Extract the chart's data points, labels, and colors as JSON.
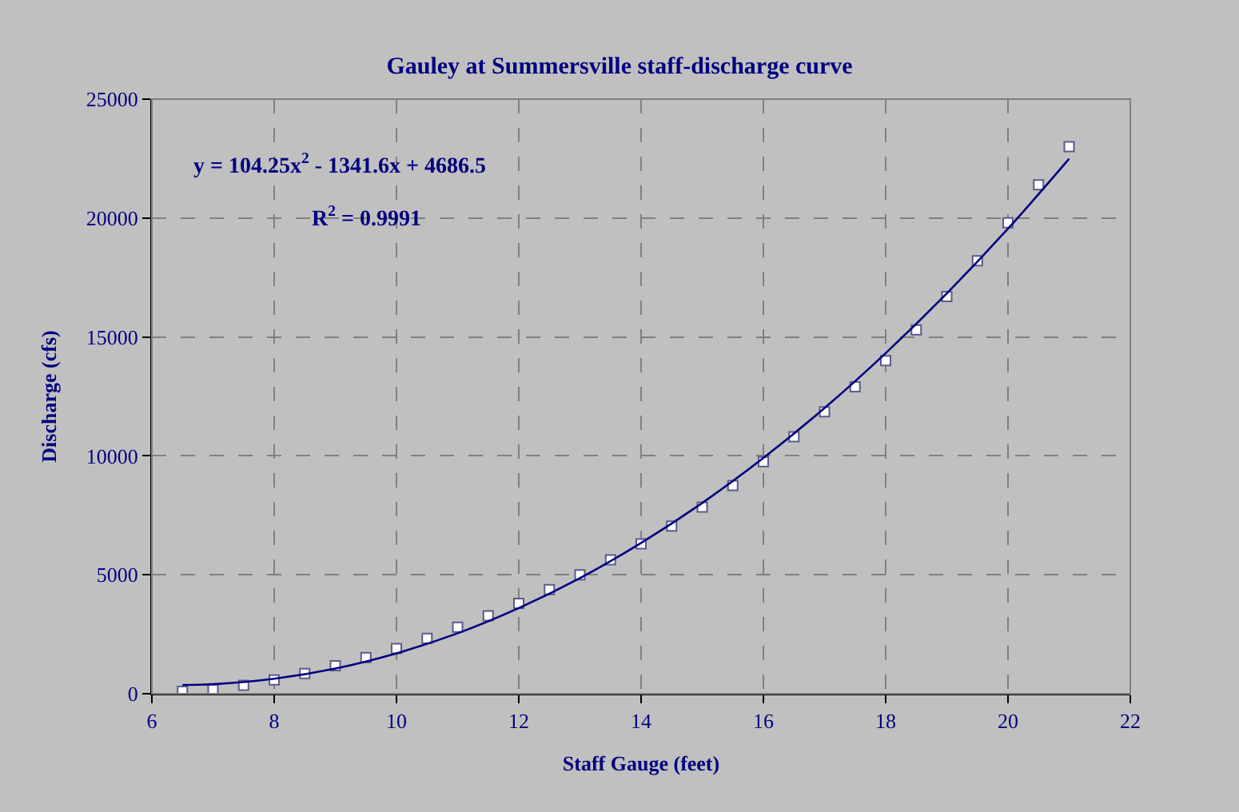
{
  "chart_data": {
    "type": "scatter",
    "title": "Gauley at Summersville staff-discharge curve",
    "xlabel": "Staff Gauge (feet)",
    "ylabel": "Discharge (cfs)",
    "xlim": [
      6,
      22
    ],
    "xticks": [
      6,
      8,
      10,
      12,
      14,
      16,
      18,
      20,
      22
    ],
    "ylim": [
      0,
      25000
    ],
    "yticks": [
      0,
      5000,
      10000,
      15000,
      20000,
      25000
    ],
    "grid": true,
    "series": [
      {
        "marker": "square",
        "color": "#ffffff",
        "x": [
          6.5,
          7,
          7.5,
          8,
          8.5,
          9,
          9.5,
          10,
          10.5,
          11,
          11.5,
          12,
          12.5,
          13,
          13.5,
          14,
          14.5,
          15,
          15.5,
          16,
          16.5,
          17,
          17.5,
          18,
          18.5,
          19,
          19.5,
          20,
          20.5,
          21
        ],
        "values": [
          100,
          180,
          350,
          580,
          850,
          1180,
          1520,
          1900,
          2330,
          2800,
          3280,
          3800,
          4380,
          5000,
          5630,
          6300,
          7050,
          7850,
          8750,
          9750,
          10800,
          11850,
          12900,
          14000,
          15300,
          16700,
          18200,
          19800,
          21400,
          23000
        ]
      },
      {
        "type": "line",
        "marker": "none",
        "line_style": "solid",
        "color": "#000080",
        "x": [
          6.5,
          7,
          8,
          9,
          10,
          11,
          12,
          13,
          14,
          15,
          16,
          17,
          18,
          19,
          20,
          21
        ],
        "values": [
          370,
          400,
          630,
          1060,
          1700,
          2540,
          3600,
          4860,
          6340,
          8020,
          9910,
          12010,
          14320,
          16830,
          19550,
          22490
        ]
      }
    ],
    "annotations": [
      "y = 104.25x$^{2}$ - 1341.6x + 4686.5",
      "R$^{2}$ = 0.9991"
    ]
  }
}
